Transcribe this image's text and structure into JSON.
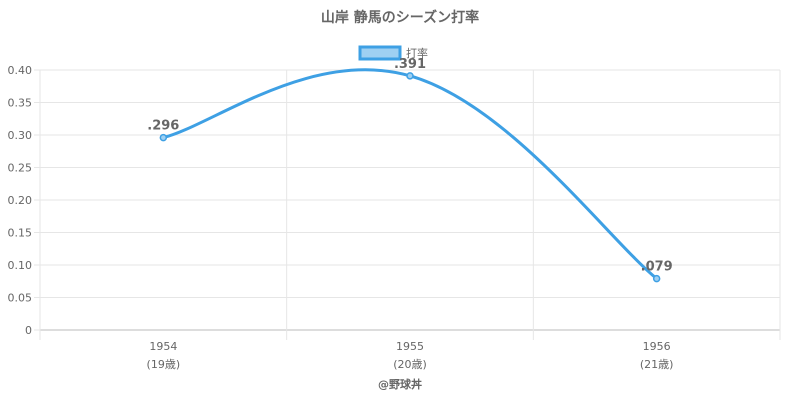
{
  "chart_data": {
    "type": "line",
    "title": "山岸 静馬のシーズン打率",
    "legend_label": "打率",
    "legend_position": "top",
    "categories": [
      "1954",
      "1955",
      "1956"
    ],
    "category_sublabels": [
      "(19歳)",
      "(20歳)",
      "(21歳)"
    ],
    "series": [
      {
        "name": "打率",
        "values": [
          0.296,
          0.391,
          0.079
        ],
        "labels": [
          ".296",
          ".391",
          ".079"
        ]
      }
    ],
    "ylim": [
      0,
      0.4
    ],
    "yticks": [
      0,
      0.05,
      0.1,
      0.15,
      0.2,
      0.25,
      0.3,
      0.35,
      0.4
    ],
    "ytick_labels": [
      "0",
      "0.05",
      "0.10",
      "0.15",
      "0.20",
      "0.25",
      "0.30",
      "0.35",
      "0.40"
    ],
    "grid": true,
    "line_color": "#3ea0e4",
    "fill_color": "#9fd0f2",
    "credit": "@野球丼"
  }
}
